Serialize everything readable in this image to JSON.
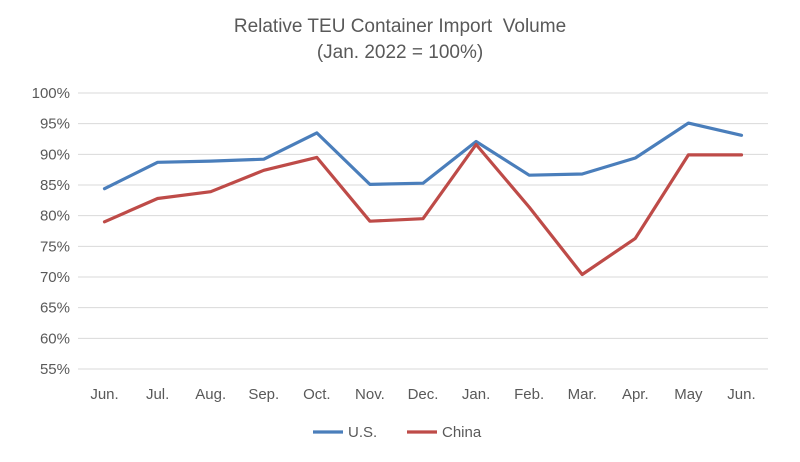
{
  "chart_data": {
    "type": "line",
    "title": "Relative TEU Container Import  Volume",
    "subtitle": "(Jan. 2022 = 100%)",
    "categories": [
      "Jun.",
      "Jul.",
      "Aug.",
      "Sep.",
      "Oct.",
      "Nov.",
      "Dec.",
      "Jan.",
      "Feb.",
      "Mar.",
      "Apr.",
      "May",
      "Jun."
    ],
    "series": [
      {
        "name": "U.S.",
        "color": "#4a7ebb",
        "values": [
          84.4,
          88.7,
          88.9,
          89.2,
          93.5,
          85.1,
          85.3,
          92.1,
          86.6,
          86.8,
          89.4,
          95.1,
          93.1
        ]
      },
      {
        "name": "China",
        "color": "#be4b48",
        "values": [
          79.0,
          82.8,
          83.9,
          87.4,
          89.5,
          79.1,
          79.5,
          91.6,
          81.4,
          70.4,
          76.3,
          89.9,
          89.9
        ]
      }
    ],
    "ylim": [
      55,
      100
    ],
    "yticks": [
      55,
      60,
      65,
      70,
      75,
      80,
      85,
      90,
      95,
      100
    ],
    "ytick_labels": [
      "55%",
      "60%",
      "65%",
      "70%",
      "75%",
      "80%",
      "85%",
      "90%",
      "95%",
      "100%"
    ],
    "grid": true,
    "legend": "bottom-center"
  }
}
